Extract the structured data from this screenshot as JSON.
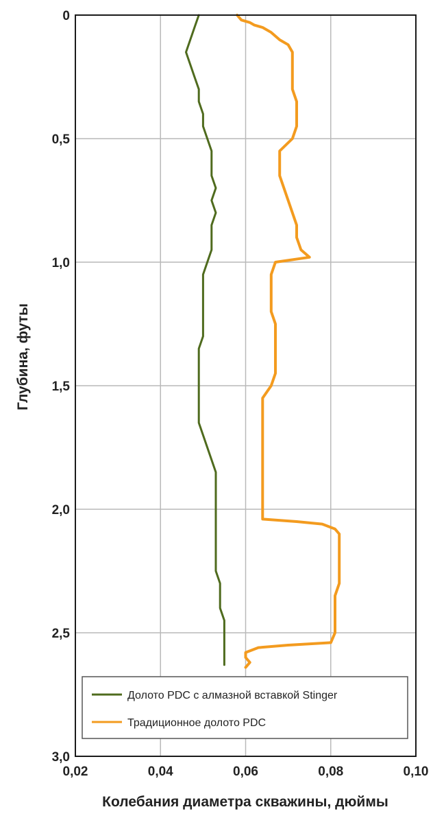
{
  "chart_data": {
    "type": "line",
    "orientation": "depth-vertical",
    "xlabel": "Колебания диаметра скважины, дюймы",
    "ylabel": "Глубина, футы",
    "xlim": [
      0.02,
      0.1
    ],
    "ylim": [
      0,
      3.0
    ],
    "y_inverted": true,
    "xticks": [
      "0,02",
      "0,04",
      "0,06",
      "0,08",
      "0,10"
    ],
    "yticks": [
      "0",
      "0,5",
      "1,0",
      "1,5",
      "2,0",
      "2,5",
      "3,0"
    ],
    "grid": true,
    "legend_position": "bottom-left",
    "series": [
      {
        "name": "Долото PDC с алмазной вставкой Stinger",
        "color": "#4f6b1e",
        "style": "smooth",
        "points": [
          [
            0.049,
            0.0
          ],
          [
            0.048,
            0.05
          ],
          [
            0.047,
            0.1
          ],
          [
            0.046,
            0.15
          ],
          [
            0.047,
            0.2
          ],
          [
            0.048,
            0.25
          ],
          [
            0.049,
            0.3
          ],
          [
            0.049,
            0.35
          ],
          [
            0.05,
            0.4
          ],
          [
            0.05,
            0.45
          ],
          [
            0.051,
            0.5
          ],
          [
            0.052,
            0.55
          ],
          [
            0.052,
            0.6
          ],
          [
            0.052,
            0.65
          ],
          [
            0.053,
            0.7
          ],
          [
            0.052,
            0.75
          ],
          [
            0.053,
            0.8
          ],
          [
            0.052,
            0.85
          ],
          [
            0.052,
            0.9
          ],
          [
            0.052,
            0.95
          ],
          [
            0.051,
            1.0
          ],
          [
            0.05,
            1.05
          ],
          [
            0.05,
            1.1
          ],
          [
            0.05,
            1.15
          ],
          [
            0.05,
            1.2
          ],
          [
            0.05,
            1.25
          ],
          [
            0.05,
            1.3
          ],
          [
            0.049,
            1.35
          ],
          [
            0.049,
            1.4
          ],
          [
            0.049,
            1.45
          ],
          [
            0.049,
            1.5
          ],
          [
            0.049,
            1.55
          ],
          [
            0.049,
            1.6
          ],
          [
            0.049,
            1.65
          ],
          [
            0.05,
            1.7
          ],
          [
            0.051,
            1.75
          ],
          [
            0.052,
            1.8
          ],
          [
            0.053,
            1.85
          ],
          [
            0.053,
            1.9
          ],
          [
            0.053,
            1.95
          ],
          [
            0.053,
            2.0
          ],
          [
            0.053,
            2.05
          ],
          [
            0.053,
            2.1
          ],
          [
            0.053,
            2.15
          ],
          [
            0.053,
            2.2
          ],
          [
            0.053,
            2.25
          ],
          [
            0.054,
            2.3
          ],
          [
            0.054,
            2.35
          ],
          [
            0.054,
            2.4
          ],
          [
            0.055,
            2.45
          ],
          [
            0.055,
            2.5
          ],
          [
            0.055,
            2.55
          ],
          [
            0.055,
            2.6
          ],
          [
            0.055,
            2.63
          ]
        ]
      },
      {
        "name": "Традиционное долото PDC",
        "color": "#f39b1f",
        "style": "smooth",
        "points": [
          [
            0.058,
            0.0
          ],
          [
            0.059,
            0.02
          ],
          [
            0.061,
            0.03
          ],
          [
            0.062,
            0.04
          ],
          [
            0.064,
            0.05
          ],
          [
            0.066,
            0.07
          ],
          [
            0.068,
            0.1
          ],
          [
            0.07,
            0.12
          ],
          [
            0.071,
            0.15
          ],
          [
            0.071,
            0.2
          ],
          [
            0.071,
            0.25
          ],
          [
            0.071,
            0.3
          ],
          [
            0.072,
            0.35
          ],
          [
            0.072,
            0.4
          ],
          [
            0.072,
            0.45
          ],
          [
            0.071,
            0.5
          ],
          [
            0.068,
            0.55
          ],
          [
            0.068,
            0.6
          ],
          [
            0.068,
            0.65
          ],
          [
            0.069,
            0.7
          ],
          [
            0.07,
            0.75
          ],
          [
            0.071,
            0.8
          ],
          [
            0.072,
            0.85
          ],
          [
            0.072,
            0.9
          ],
          [
            0.073,
            0.95
          ],
          [
            0.075,
            0.98
          ],
          [
            0.067,
            1.0
          ],
          [
            0.066,
            1.05
          ],
          [
            0.066,
            1.1
          ],
          [
            0.066,
            1.15
          ],
          [
            0.066,
            1.2
          ],
          [
            0.067,
            1.25
          ],
          [
            0.067,
            1.3
          ],
          [
            0.067,
            1.35
          ],
          [
            0.067,
            1.4
          ],
          [
            0.067,
            1.45
          ],
          [
            0.066,
            1.5
          ],
          [
            0.064,
            1.55
          ],
          [
            0.064,
            1.6
          ],
          [
            0.064,
            1.65
          ],
          [
            0.064,
            1.7
          ],
          [
            0.064,
            1.75
          ],
          [
            0.064,
            1.8
          ],
          [
            0.064,
            1.85
          ],
          [
            0.064,
            1.9
          ],
          [
            0.064,
            1.95
          ],
          [
            0.064,
            2.0
          ],
          [
            0.064,
            2.04
          ],
          [
            0.072,
            2.05
          ],
          [
            0.078,
            2.06
          ],
          [
            0.081,
            2.08
          ],
          [
            0.082,
            2.1
          ],
          [
            0.082,
            2.15
          ],
          [
            0.082,
            2.2
          ],
          [
            0.082,
            2.25
          ],
          [
            0.082,
            2.3
          ],
          [
            0.081,
            2.35
          ],
          [
            0.081,
            2.4
          ],
          [
            0.081,
            2.45
          ],
          [
            0.081,
            2.5
          ],
          [
            0.08,
            2.54
          ],
          [
            0.07,
            2.55
          ],
          [
            0.063,
            2.56
          ],
          [
            0.06,
            2.58
          ],
          [
            0.06,
            2.6
          ],
          [
            0.061,
            2.62
          ],
          [
            0.06,
            2.64
          ]
        ]
      }
    ]
  }
}
